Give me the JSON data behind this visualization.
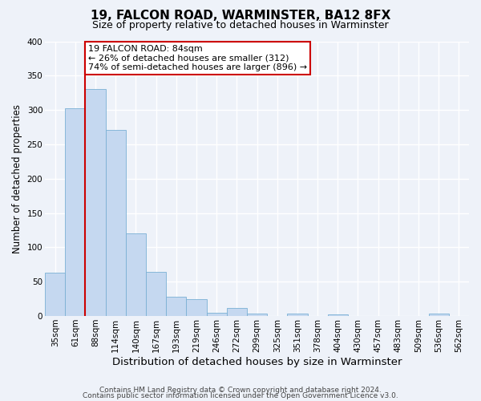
{
  "title": "19, FALCON ROAD, WARMINSTER, BA12 8FX",
  "subtitle": "Size of property relative to detached houses in Warminster",
  "xlabel": "Distribution of detached houses by size in Warminster",
  "ylabel": "Number of detached properties",
  "categories": [
    "35sqm",
    "61sqm",
    "88sqm",
    "114sqm",
    "140sqm",
    "167sqm",
    "193sqm",
    "219sqm",
    "246sqm",
    "272sqm",
    "299sqm",
    "325sqm",
    "351sqm",
    "378sqm",
    "404sqm",
    "430sqm",
    "457sqm",
    "483sqm",
    "509sqm",
    "536sqm",
    "562sqm"
  ],
  "values": [
    63,
    303,
    330,
    271,
    120,
    64,
    28,
    24,
    5,
    12,
    4,
    0,
    3,
    0,
    2,
    0,
    0,
    0,
    0,
    3,
    0
  ],
  "bar_color": "#c5d8f0",
  "bar_edge_color": "#7ab0d4",
  "vline_color": "#cc0000",
  "vline_index": 1.5,
  "annotation_box_color": "#cc0000",
  "annotation_text_line1": "19 FALCON ROAD: 84sqm",
  "annotation_text_line2": "← 26% of detached houses are smaller (312)",
  "annotation_text_line3": "74% of semi-detached houses are larger (896) →",
  "ylim": [
    0,
    400
  ],
  "yticks": [
    0,
    50,
    100,
    150,
    200,
    250,
    300,
    350,
    400
  ],
  "footer_line1": "Contains HM Land Registry data © Crown copyright and database right 2024.",
  "footer_line2": "Contains public sector information licensed under the Open Government Licence v3.0.",
  "bg_color": "#eef2f9",
  "grid_color": "#ffffff",
  "title_fontsize": 11,
  "subtitle_fontsize": 9,
  "xlabel_fontsize": 9.5,
  "ylabel_fontsize": 8.5,
  "tick_fontsize": 7.5,
  "annotation_fontsize": 8,
  "footer_fontsize": 6.5
}
